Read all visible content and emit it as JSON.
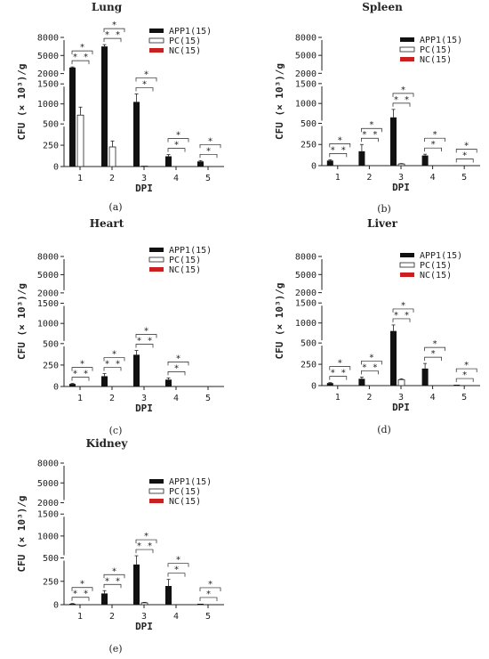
{
  "colors": {
    "APP1": "#111111",
    "PC": "#ffffff",
    "NC": "#cc1f1f"
  },
  "chart_data": [
    {
      "type": "bar",
      "title": "Lung",
      "panel_label": "(a)",
      "xlabel": "DPI",
      "ylabel": "CFU (× 10³)/g",
      "categories": [
        "1",
        "2",
        "3",
        "4",
        "5"
      ],
      "yticks": [
        "0",
        "250",
        "500",
        "1000",
        "1500",
        "2000",
        "5000",
        "8000"
      ],
      "ylim": [
        0,
        8000
      ],
      "y_axis_breaks": [
        [
          500,
          500
        ],
        [
          1500,
          2000
        ]
      ],
      "series": [
        {
          "name": "APP1(15)",
          "values": [
            3000,
            6500,
            1050,
            120,
            60
          ],
          "errors": [
            100,
            300,
            200,
            20,
            10
          ]
        },
        {
          "name": "PC(15)",
          "values": [
            720,
            230,
            5,
            0,
            0
          ],
          "errors": [
            200,
            70,
            0,
            0,
            0
          ]
        },
        {
          "name": "NC(15)",
          "values": [
            0,
            0,
            0,
            0,
            0
          ],
          "errors": [
            0,
            0,
            0,
            0,
            0
          ]
        }
      ],
      "annotations": [
        "*",
        "* *",
        "*",
        "* *",
        "*",
        "*",
        "*",
        "*",
        "*",
        "*"
      ]
    },
    {
      "type": "bar",
      "title": "Spleen",
      "panel_label": "(b)",
      "xlabel": "DPI",
      "ylabel": "CFU (× 10³)/g",
      "categories": [
        "1",
        "2",
        "3",
        "4",
        "5"
      ],
      "yticks": [
        "0",
        "250",
        "500",
        "1000",
        "1500",
        "2000",
        "5000",
        "8000"
      ],
      "ylim": [
        0,
        8000
      ],
      "y_axis_breaks": [
        [
          1500,
          2000
        ]
      ],
      "series": [
        {
          "name": "APP1(15)",
          "values": [
            60,
            170,
            650,
            120,
            5
          ],
          "errors": [
            10,
            80,
            200,
            15,
            0
          ]
        },
        {
          "name": "PC(15)",
          "values": [
            0,
            0,
            20,
            0,
            0
          ],
          "errors": [
            0,
            0,
            5,
            0,
            0
          ]
        },
        {
          "name": "NC(15)",
          "values": [
            0,
            0,
            0,
            0,
            0
          ],
          "errors": [
            0,
            0,
            0,
            0,
            0
          ]
        }
      ],
      "annotations": [
        "*",
        "* *",
        "*",
        "* *",
        "*",
        "* *",
        "*",
        "*",
        "*",
        "*"
      ]
    },
    {
      "type": "bar",
      "title": "Heart",
      "panel_label": "(c)",
      "xlabel": "DPI",
      "ylabel": "CFU (× 10³)/g",
      "categories": [
        "1",
        "2",
        "3",
        "4",
        "5"
      ],
      "yticks": [
        "0",
        "250",
        "500",
        "1000",
        "1500",
        "2000",
        "5000",
        "8000"
      ],
      "ylim": [
        0,
        8000
      ],
      "y_axis_breaks": [
        [
          1500,
          2000
        ]
      ],
      "series": [
        {
          "name": "APP1(15)",
          "values": [
            30,
            120,
            370,
            80,
            0
          ],
          "errors": [
            5,
            30,
            50,
            20,
            0
          ]
        },
        {
          "name": "PC(15)",
          "values": [
            0,
            0,
            0,
            0,
            0
          ],
          "errors": [
            0,
            0,
            0,
            0,
            0
          ]
        },
        {
          "name": "NC(15)",
          "values": [
            0,
            0,
            0,
            0,
            0
          ],
          "errors": [
            0,
            0,
            0,
            0,
            0
          ]
        }
      ],
      "annotations": [
        "*",
        "* *",
        "*",
        "* *",
        "*",
        "* *",
        "*",
        "*"
      ]
    },
    {
      "type": "bar",
      "title": "Liver",
      "panel_label": "(d)",
      "xlabel": "DPI",
      "ylabel": "CFU (× 10³)/g",
      "categories": [
        "1",
        "2",
        "3",
        "4",
        "5"
      ],
      "yticks": [
        "0",
        "250",
        "500",
        "1000",
        "1500",
        "2000",
        "5000",
        "8000"
      ],
      "ylim": [
        0,
        8000
      ],
      "y_axis_breaks": [
        [
          1500,
          2000
        ]
      ],
      "series": [
        {
          "name": "APP1(15)",
          "values": [
            30,
            80,
            800,
            200,
            10
          ],
          "errors": [
            5,
            20,
            150,
            60,
            0
          ]
        },
        {
          "name": "PC(15)",
          "values": [
            0,
            0,
            70,
            0,
            0
          ],
          "errors": [
            0,
            0,
            10,
            0,
            0
          ]
        },
        {
          "name": "NC(15)",
          "values": [
            0,
            0,
            0,
            0,
            0
          ],
          "errors": [
            0,
            0,
            0,
            0,
            0
          ]
        }
      ],
      "annotations": [
        "*",
        "* *",
        "*",
        "* *",
        "*",
        "* *",
        "*",
        "*",
        "*",
        "*"
      ]
    },
    {
      "type": "bar",
      "title": "Kidney",
      "panel_label": "(e)",
      "xlabel": "DPI",
      "ylabel": "CFU (× 10³)/g",
      "categories": [
        "1",
        "2",
        "3",
        "4",
        "5"
      ],
      "yticks": [
        "0",
        "250",
        "500",
        "1000",
        "1500",
        "2000",
        "5000",
        "8000"
      ],
      "ylim": [
        0,
        8000
      ],
      "y_axis_breaks": [
        [
          1500,
          2000
        ]
      ],
      "series": [
        {
          "name": "APP1(15)",
          "values": [
            10,
            120,
            430,
            200,
            10
          ],
          "errors": [
            2,
            30,
            120,
            70,
            0
          ]
        },
        {
          "name": "PC(15)",
          "values": [
            0,
            0,
            20,
            0,
            0
          ],
          "errors": [
            0,
            0,
            5,
            0,
            0
          ]
        },
        {
          "name": "NC(15)",
          "values": [
            0,
            0,
            0,
            0,
            0
          ],
          "errors": [
            0,
            0,
            0,
            0,
            0
          ]
        }
      ],
      "annotations": [
        "*",
        "* *",
        "*",
        "* *",
        "*",
        "* *",
        "*",
        "*",
        "*",
        "*"
      ]
    }
  ]
}
